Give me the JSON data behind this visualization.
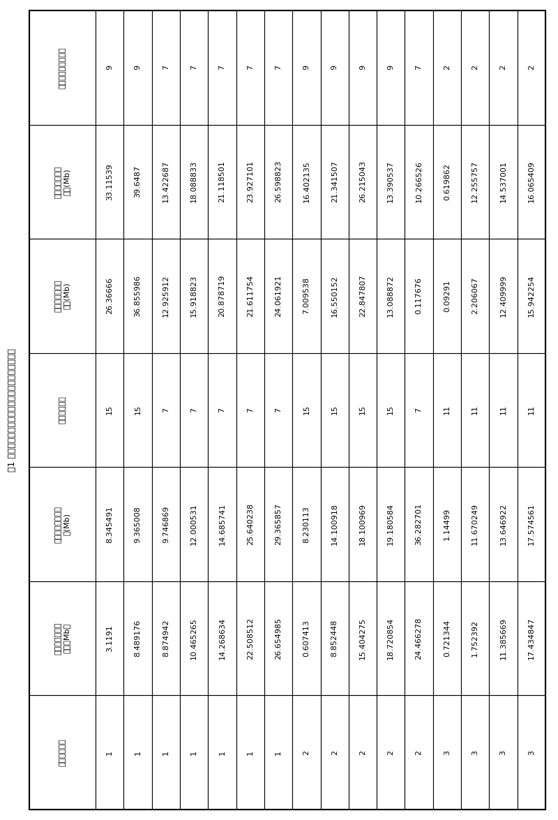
{
  "title": "表1 苹果染色体共线性区段关系的统计和染色体来源",
  "columns": [
    "苹果染色体号",
    "苹果染色体起始\n位置（Mb）",
    "苹果染色体终止位\n置(Mb)",
    "苹果染色体号",
    "苹果染色体起始\n位置(Mb)",
    "苹果染色体终止\n位置(Mb)",
    "蔷薇科祖先染色体号"
  ],
  "rows": [
    [
      "1",
      "3.1191",
      "8.345491",
      "15",
      "26.36666",
      "33.11539",
      "9"
    ],
    [
      "1",
      "8.489176",
      "9.365008",
      "15",
      "36.855986",
      "39.6487",
      "9"
    ],
    [
      "1",
      "8.874942",
      "9.746869",
      "7",
      "12.925912",
      "13.422687",
      "7"
    ],
    [
      "1",
      "10.465265",
      "12.000531",
      "7",
      "15.918823",
      "18.088833",
      "7"
    ],
    [
      "1",
      "14.268634",
      "14.685741",
      "7",
      "20.878719",
      "21.118501",
      "7"
    ],
    [
      "1",
      "22.508512",
      "25.640238",
      "7",
      "21.611754",
      "23.927101",
      "7"
    ],
    [
      "1",
      "26.654985",
      "29.365857",
      "7",
      "24.061921",
      "26.598823",
      "7"
    ],
    [
      "2",
      "0.607413",
      "8.230113",
      "15",
      "7.009538",
      "16.402135",
      "9"
    ],
    [
      "2",
      "8.852448",
      "14.100918",
      "15",
      "16.550152",
      "21.341507",
      "9"
    ],
    [
      "2",
      "15.404275",
      "18.100969",
      "15",
      "22.847807",
      "26.215043",
      "9"
    ],
    [
      "2",
      "18.720854",
      "19.180584",
      "15",
      "13.088872",
      "13.390537",
      "9"
    ],
    [
      "2",
      "24.466278",
      "36.282701",
      "7",
      "0.117676",
      "10.266526",
      "7"
    ],
    [
      "3",
      "0.721344",
      "1.14499",
      "11",
      "0.09291",
      "0.619862",
      "2"
    ],
    [
      "3",
      "1.752392",
      "11.670249",
      "11",
      "2.206067",
      "12.255757",
      "2"
    ],
    [
      "3",
      "11.385669",
      "13.646922",
      "11",
      "12.409999",
      "14.537001",
      "2"
    ],
    [
      "3",
      "17.434847",
      "17.574561",
      "11",
      "15.942254",
      "16.065409",
      "2"
    ]
  ],
  "bg_color": "#ffffff",
  "line_color": "#000000",
  "text_color": "#000000",
  "title_font_size": 9,
  "header_font_size": 8,
  "data_font_size": 8
}
